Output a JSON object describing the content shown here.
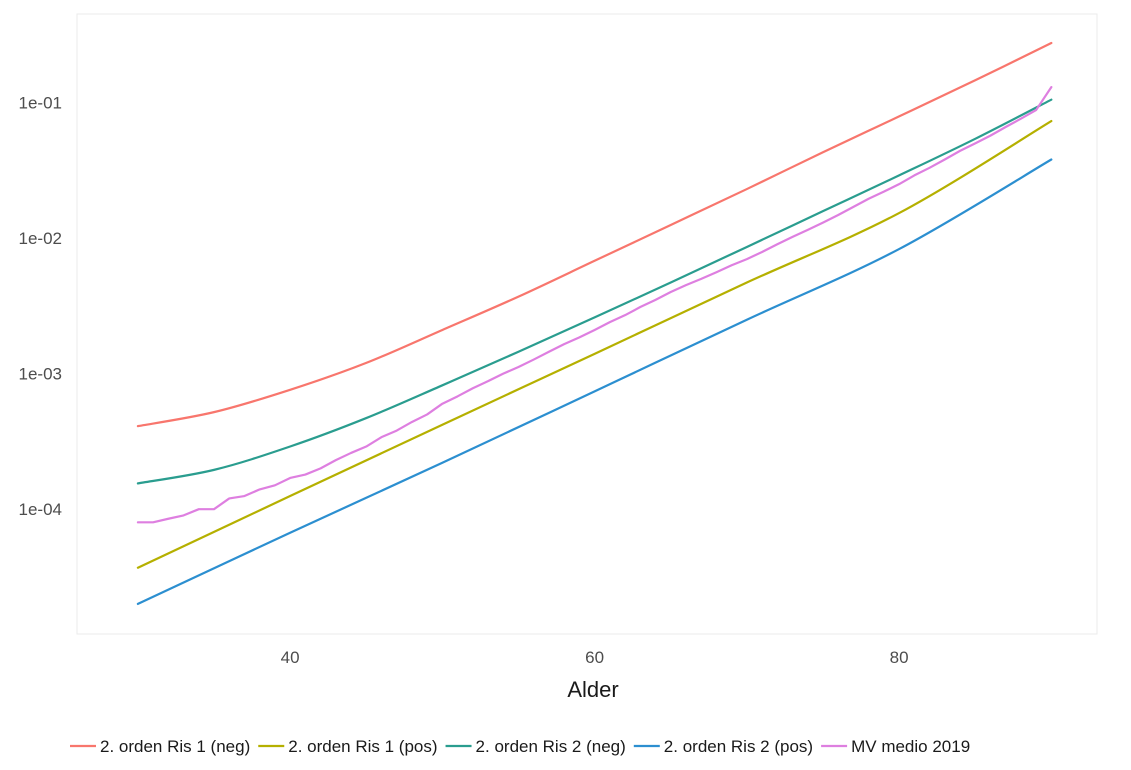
{
  "chart_data": {
    "type": "line",
    "title": "",
    "xlabel": "Alder",
    "ylabel": "",
    "x_ticks": [
      40,
      60,
      80
    ],
    "x_tick_labels": [
      "40",
      "60",
      "80"
    ],
    "xlim": [
      26,
      93
    ],
    "y_scale": "log",
    "y_ticks": [
      0.0001,
      0.001,
      0.01,
      0.1
    ],
    "y_tick_labels": [
      "1e-04",
      "1e-03",
      "1e-02",
      "1e-01"
    ],
    "ylim": [
      1.2e-05,
      0.45
    ],
    "grid": false,
    "legend_position": "bottom",
    "series": [
      {
        "name": "2. orden Ris 1 (neg)",
        "color": "#F8766D",
        "style": "smooth",
        "x": [
          30,
          35,
          40,
          45,
          50,
          55,
          60,
          65,
          70,
          75,
          80,
          85,
          90
        ],
        "y": [
          0.00041,
          0.00052,
          0.00076,
          0.0012,
          0.0021,
          0.0037,
          0.0068,
          0.0125,
          0.023,
          0.043,
          0.079,
          0.146,
          0.275
        ]
      },
      {
        "name": "2. orden Ris 1 (pos)",
        "color": "#B5B000",
        "style": "smooth",
        "x": [
          30,
          40,
          50,
          60,
          70,
          80,
          90
        ],
        "y": [
          3.7e-05,
          0.000125,
          0.00042,
          0.0014,
          0.0047,
          0.0153,
          0.073
        ]
      },
      {
        "name": "2. orden Ris 2 (neg)",
        "color": "#2A9D8F",
        "style": "smooth",
        "x": [
          30,
          35,
          40,
          45,
          50,
          55,
          60,
          65,
          70,
          75,
          80,
          85,
          90
        ],
        "y": [
          0.000155,
          0.000195,
          0.00029,
          0.00047,
          0.00082,
          0.00145,
          0.0026,
          0.0047,
          0.0086,
          0.0158,
          0.029,
          0.054,
          0.105
        ]
      },
      {
        "name": "2. orden Ris 2 (pos)",
        "color": "#2C8FD0",
        "style": "smooth",
        "x": [
          30,
          40,
          50,
          60,
          70,
          80,
          90
        ],
        "y": [
          2e-05,
          6.7e-05,
          0.00022,
          0.00074,
          0.0025,
          0.0083,
          0.038
        ]
      },
      {
        "name": "MV medio 2019",
        "color": "#DE7FE0",
        "style": "stepped",
        "x": [
          30,
          31,
          32,
          33,
          34,
          35,
          36,
          37,
          38,
          39,
          40,
          41,
          42,
          43,
          44,
          45,
          46,
          47,
          48,
          49,
          50,
          51,
          52,
          53,
          54,
          55,
          56,
          57,
          58,
          59,
          60,
          61,
          62,
          63,
          64,
          65,
          66,
          67,
          68,
          69,
          70,
          71,
          72,
          73,
          74,
          75,
          76,
          77,
          78,
          79,
          80,
          81,
          82,
          83,
          84,
          85,
          86,
          87,
          88,
          89,
          90
        ],
        "y": [
          8e-05,
          8e-05,
          8.5e-05,
          9e-05,
          0.0001,
          0.0001,
          0.00012,
          0.000125,
          0.00014,
          0.00015,
          0.00017,
          0.00018,
          0.0002,
          0.00023,
          0.00026,
          0.00029,
          0.00034,
          0.00038,
          0.00044,
          0.0005,
          0.0006,
          0.00068,
          0.00078,
          0.00088,
          0.001,
          0.00112,
          0.00127,
          0.00145,
          0.00165,
          0.00185,
          0.0021,
          0.0024,
          0.0027,
          0.0031,
          0.0035,
          0.004,
          0.0045,
          0.005,
          0.0056,
          0.0063,
          0.007,
          0.0079,
          0.009,
          0.0102,
          0.0115,
          0.013,
          0.0148,
          0.017,
          0.0195,
          0.022,
          0.025,
          0.029,
          0.033,
          0.038,
          0.044,
          0.05,
          0.057,
          0.066,
          0.076,
          0.088,
          0.13
        ]
      }
    ]
  }
}
